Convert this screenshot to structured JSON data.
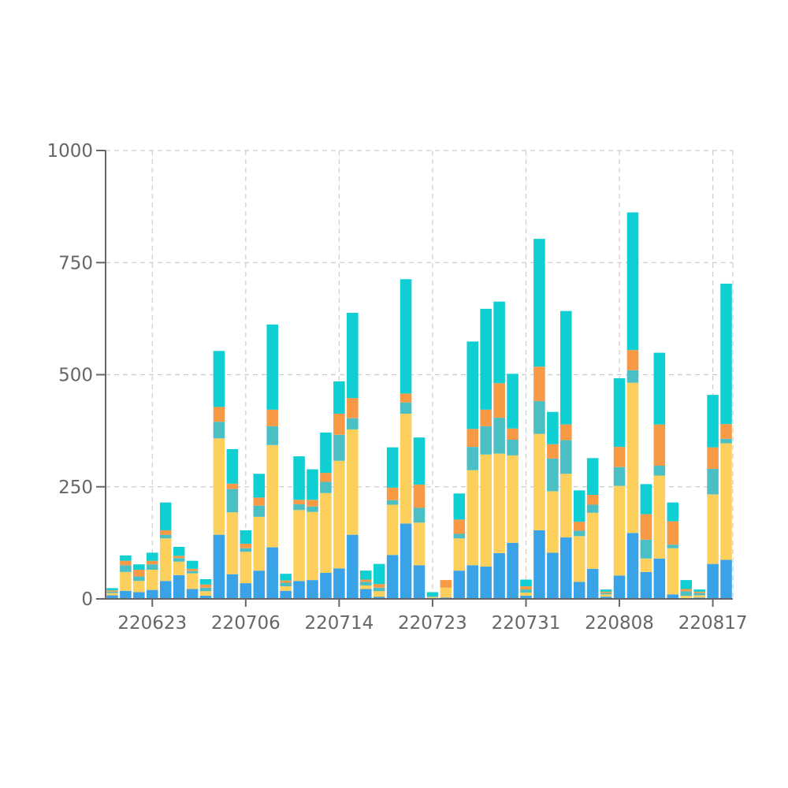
{
  "chart_data": {
    "type": "bar",
    "stacked": true,
    "title": "",
    "xlabel": "",
    "ylabel": "",
    "ylim": [
      0,
      1000
    ],
    "yticks": [
      0,
      250,
      500,
      750,
      1000
    ],
    "ytick_labels": [
      "0",
      "250",
      "500",
      "750",
      "1000"
    ],
    "xtick_labels": [
      {
        "label": "220623",
        "index": 3
      },
      {
        "label": "220706",
        "index": 10
      },
      {
        "label": "220714",
        "index": 17
      },
      {
        "label": "220723",
        "index": 24
      },
      {
        "label": "220731",
        "index": 31
      },
      {
        "label": "220808",
        "index": 38
      },
      {
        "label": "220817",
        "index": 45
      }
    ],
    "grid": true,
    "legend": "none",
    "categories": [
      "0",
      "1",
      "2",
      "3",
      "4",
      "5",
      "6",
      "7",
      "8",
      "9",
      "10",
      "11",
      "12",
      "13",
      "14",
      "15",
      "16",
      "17",
      "18",
      "19",
      "20",
      "21",
      "22",
      "23",
      "24",
      "25",
      "26",
      "27",
      "28",
      "29",
      "30",
      "31",
      "32",
      "33",
      "34",
      "35",
      "36",
      "37",
      "38",
      "39",
      "40",
      "41",
      "42",
      "43",
      "44",
      "45",
      "46"
    ],
    "colors": [
      "#3aa3e8",
      "#fdd05e",
      "#4ac0c4",
      "#f89a45",
      "#10cfd2"
    ],
    "series": [
      {
        "values": [
          8,
          18,
          15,
          20,
          40,
          53,
          22,
          7,
          143,
          55,
          35,
          63,
          115,
          18,
          40,
          42,
          58,
          68,
          143,
          22,
          5,
          98,
          168,
          75,
          2,
          3,
          63,
          75,
          72,
          102,
          125,
          7,
          153,
          103,
          137,
          38,
          67,
          5,
          52,
          147,
          60,
          90,
          10,
          2,
          3,
          78,
          87
        ]
      },
      {
        "values": [
          5,
          42,
          25,
          45,
          95,
          30,
          35,
          10,
          215,
          138,
          70,
          120,
          228,
          10,
          158,
          152,
          178,
          240,
          235,
          8,
          12,
          112,
          245,
          95,
          2,
          22,
          72,
          212,
          250,
          222,
          195,
          7,
          215,
          137,
          142,
          102,
          125,
          5,
          200,
          335,
          30,
          185,
          103,
          5,
          5,
          155,
          260
        ]
      },
      {
        "values": [
          3,
          15,
          10,
          12,
          8,
          8,
          5,
          8,
          37,
          52,
          8,
          25,
          42,
          8,
          13,
          12,
          25,
          58,
          25,
          8,
          8,
          10,
          25,
          33,
          3,
          0,
          10,
          52,
          63,
          80,
          35,
          7,
          73,
          73,
          75,
          12,
          18,
          3,
          42,
          28,
          42,
          22,
          8,
          10,
          5,
          57,
          10
        ]
      },
      {
        "values": [
          3,
          10,
          15,
          8,
          10,
          5,
          5,
          7,
          33,
          12,
          10,
          18,
          37,
          5,
          10,
          15,
          20,
          47,
          45,
          5,
          8,
          28,
          20,
          52,
          0,
          17,
          32,
          40,
          37,
          77,
          25,
          7,
          77,
          32,
          35,
          20,
          22,
          3,
          45,
          45,
          57,
          92,
          52,
          5,
          3,
          48,
          33
        ]
      },
      {
        "values": [
          5,
          12,
          12,
          18,
          62,
          20,
          18,
          12,
          125,
          77,
          30,
          53,
          190,
          15,
          97,
          68,
          90,
          72,
          190,
          20,
          45,
          90,
          255,
          105,
          8,
          0,
          58,
          195,
          225,
          182,
          122,
          15,
          285,
          72,
          253,
          70,
          82,
          5,
          153,
          307,
          67,
          160,
          42,
          20,
          5,
          117,
          313
        ]
      }
    ]
  }
}
